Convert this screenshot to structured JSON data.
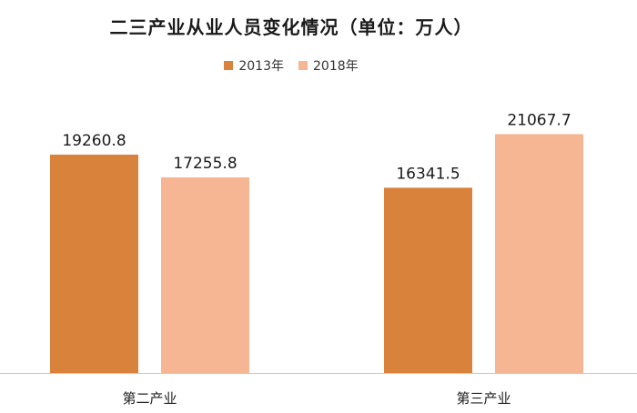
{
  "chart_data": {
    "type": "bar",
    "title": "二三产业从业人员变化情况（单位：万人）",
    "categories": [
      "第二产业",
      "第三产业"
    ],
    "series": [
      {
        "name": "2013年",
        "color": "#D9823C",
        "values": [
          19260.8,
          16341.5
        ]
      },
      {
        "name": "2018年",
        "color": "#F7B693",
        "values": [
          17255.8,
          21067.7
        ]
      }
    ],
    "value_labels": [
      [
        "19260.8",
        "16341.5"
      ],
      [
        "17255.8",
        "21067.7"
      ]
    ],
    "xlabel": "",
    "ylabel": "",
    "ylim": [
      0,
      26000
    ],
    "grid": false,
    "legend_position": "top-center"
  }
}
